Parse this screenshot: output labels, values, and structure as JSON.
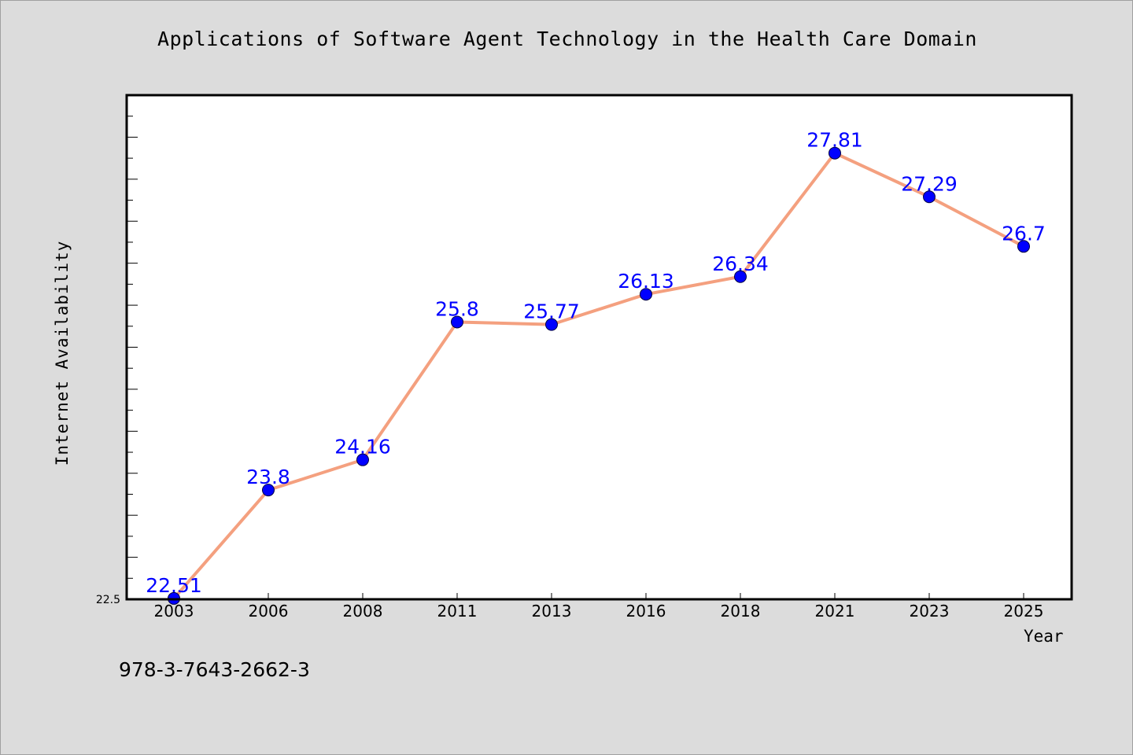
{
  "chart_data": {
    "type": "line",
    "title": "Applications of Software Agent Technology in the Health Care Domain",
    "xlabel": "Year",
    "ylabel": "Internet Availability",
    "categories": [
      "2003",
      "2006",
      "2008",
      "2011",
      "2013",
      "2016",
      "2018",
      "2021",
      "2023",
      "2025"
    ],
    "series": [
      {
        "values": [
          22.51,
          23.8,
          24.16,
          25.8,
          25.77,
          26.13,
          26.34,
          27.81,
          27.29,
          26.7
        ],
        "labels": [
          "22.51",
          "23.8",
          "24.16",
          "25.8",
          "25.77",
          "26.13",
          "26.34",
          "27.81",
          "27.29",
          "26.7"
        ]
      }
    ],
    "ylim": [
      22.5,
      28.5
    ],
    "ytick_labels": [
      "22.5"
    ],
    "grid": false,
    "legend": "none",
    "line_color": "#f4a07f",
    "marker_color": "#0000ff",
    "label_color": "#0000ff"
  },
  "footer": {
    "isbn": "978-3-7643-2662-3"
  }
}
